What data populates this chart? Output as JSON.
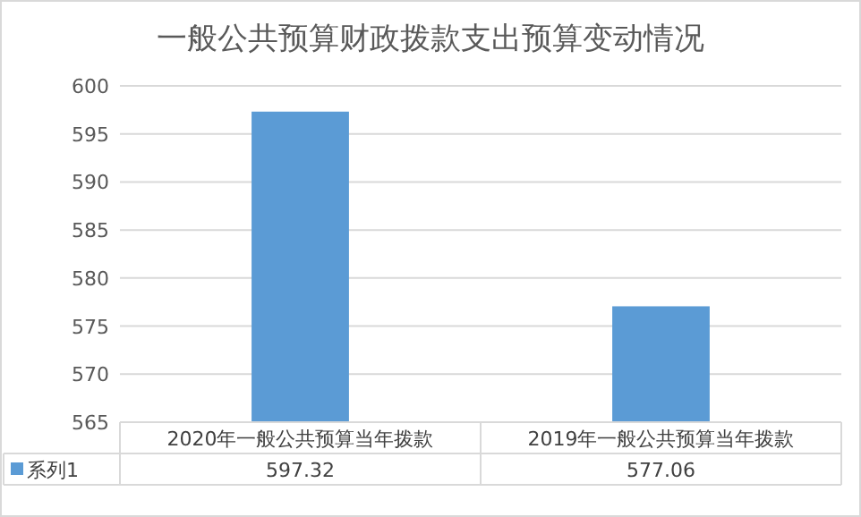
{
  "chart_data": {
    "type": "bar",
    "title": "一般公共预算财政拨款支出预算变动情况",
    "categories": [
      "2020年一般公共预算当年拨款",
      "2019年一般公共预算当年拨款"
    ],
    "series": [
      {
        "name": "系列1",
        "color": "#5b9bd5",
        "values": [
          597.32,
          577.06
        ]
      }
    ],
    "ylim": [
      565,
      600
    ],
    "yticks": [
      565,
      570,
      575,
      580,
      585,
      590,
      595,
      600
    ],
    "grid": "y",
    "data_labels": true
  }
}
